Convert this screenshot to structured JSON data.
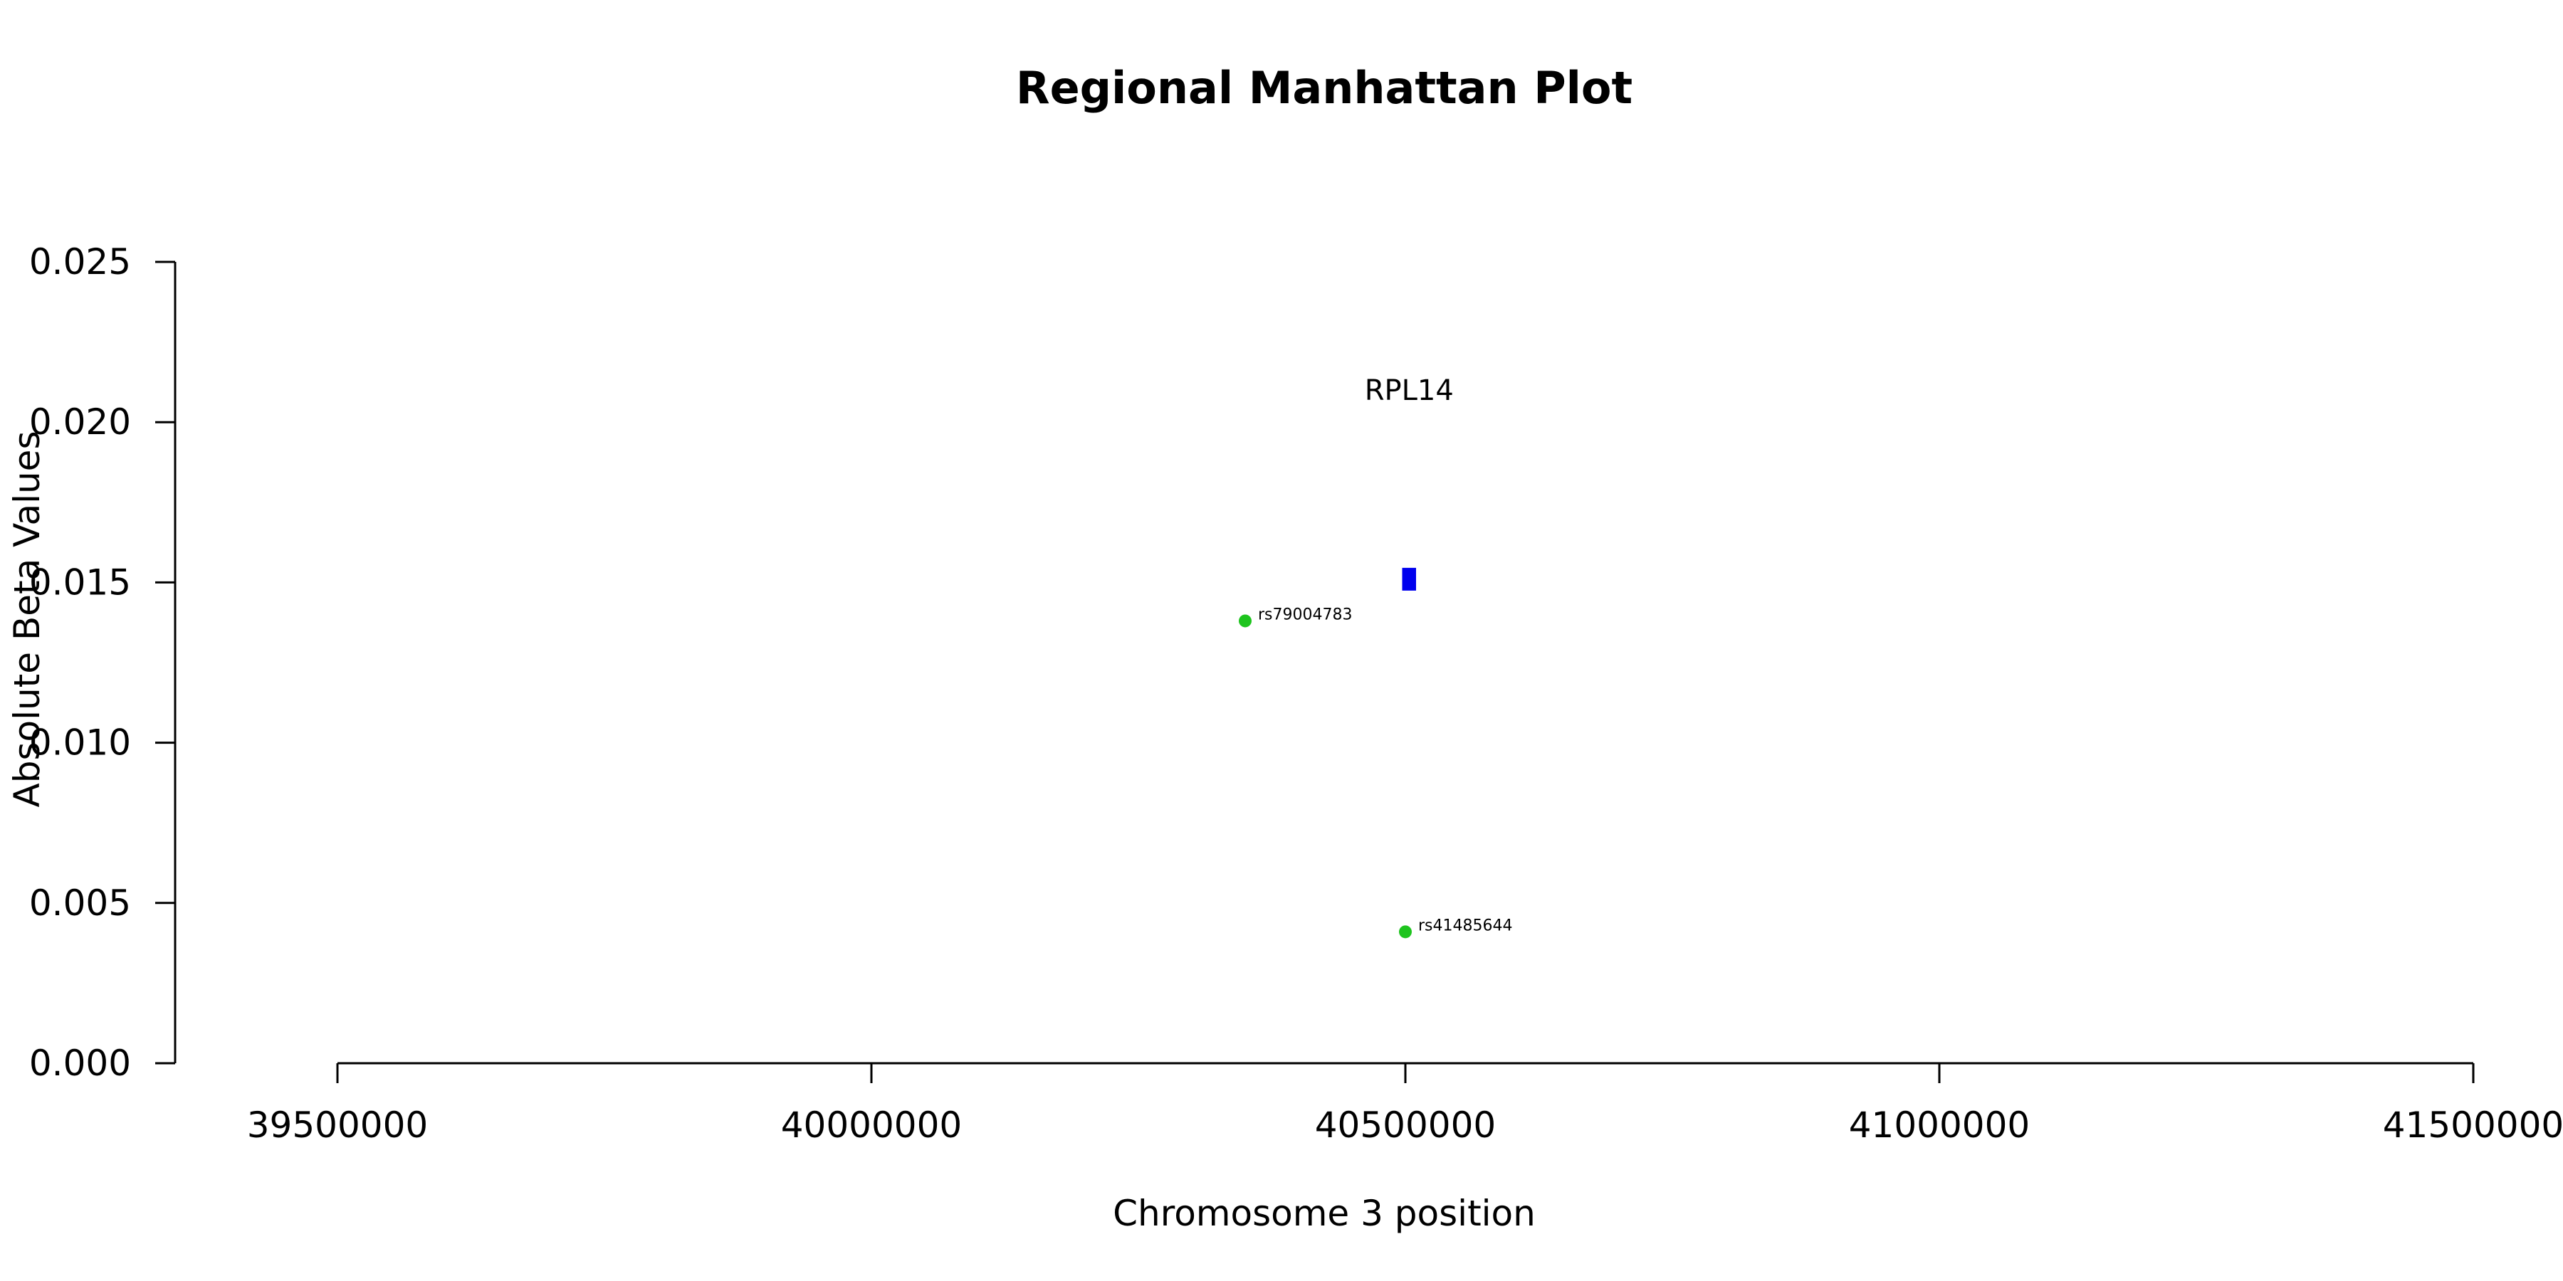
{
  "chart_data": {
    "type": "scatter",
    "title": "Regional Manhattan Plot",
    "xlabel": "Chromosome 3 position",
    "ylabel": "Absolute Beta Values",
    "xlim": [
      39500000,
      41500000
    ],
    "ylim": [
      0,
      0.025
    ],
    "x_ticks": [
      39500000,
      40000000,
      40500000,
      41000000,
      41500000
    ],
    "x_tick_labels": [
      "39500000",
      "40000000",
      "40500000",
      "41000000",
      "41500000"
    ],
    "y_ticks": [
      0,
      0.005,
      0.01,
      0.015,
      0.02,
      0.025
    ],
    "y_tick_labels": [
      "0.000",
      "0.005",
      "0.010",
      "0.015",
      "0.020",
      "0.025"
    ],
    "grid": false,
    "legend": "none",
    "points": [
      {
        "label": "rs79004783",
        "x": 40350000,
        "y": 0.0138,
        "color": "#1ec41e"
      },
      {
        "label": "rs41485644",
        "x": 40500000,
        "y": 0.0041,
        "color": "#1ec41e"
      }
    ],
    "genes": [
      {
        "name": "RPL14",
        "start": 40497000,
        "end": 40510000,
        "y": 0.0151,
        "color": "#0000ee"
      }
    ]
  }
}
